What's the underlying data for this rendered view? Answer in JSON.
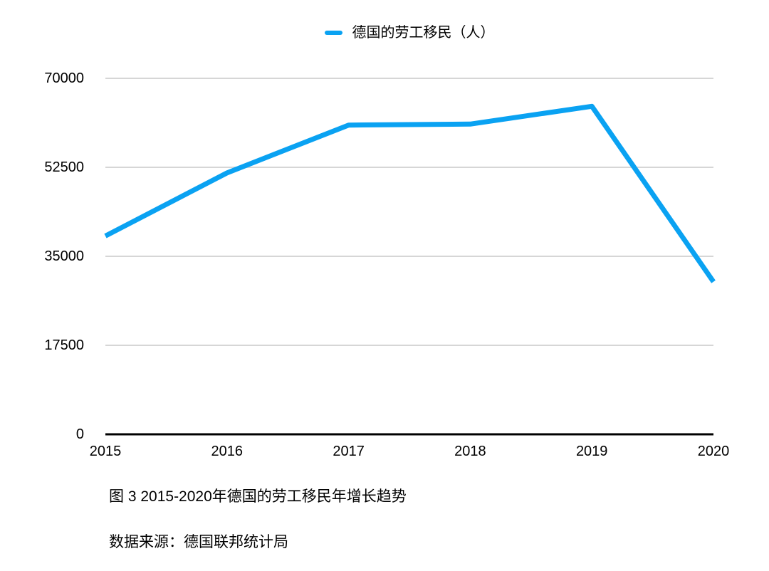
{
  "page": {
    "background": "#ffffff"
  },
  "legend": {
    "label": "德国的劳工移民（人）",
    "marker_color": "#0aa2f2",
    "marker_shape": "dash"
  },
  "chart_data": {
    "type": "line",
    "title": "",
    "categories": [
      "2015",
      "2016",
      "2017",
      "2018",
      "2019",
      "2020"
    ],
    "series": [
      {
        "name": "德国的劳工移民（人）",
        "values": [
          39000,
          51400,
          60800,
          61000,
          64500,
          30000
        ],
        "color": "#0aa2f2",
        "stroke_width": 7
      }
    ],
    "yticks": [
      0,
      17500,
      35000,
      52500,
      70000
    ],
    "ytick_labels": [
      "0",
      "17500",
      "35000",
      "52500",
      "70000"
    ],
    "ylim": [
      0,
      70000
    ],
    "xlabel": "",
    "ylabel": "",
    "grid": true,
    "grid_color": "#d6d6d6",
    "axis_color": "#000000",
    "legend_position": "top-center"
  },
  "caption": {
    "figure_label": "图 3 2015-2020年德国的劳工移民年增长趋势",
    "source": "数据来源：德国联邦统计局"
  }
}
